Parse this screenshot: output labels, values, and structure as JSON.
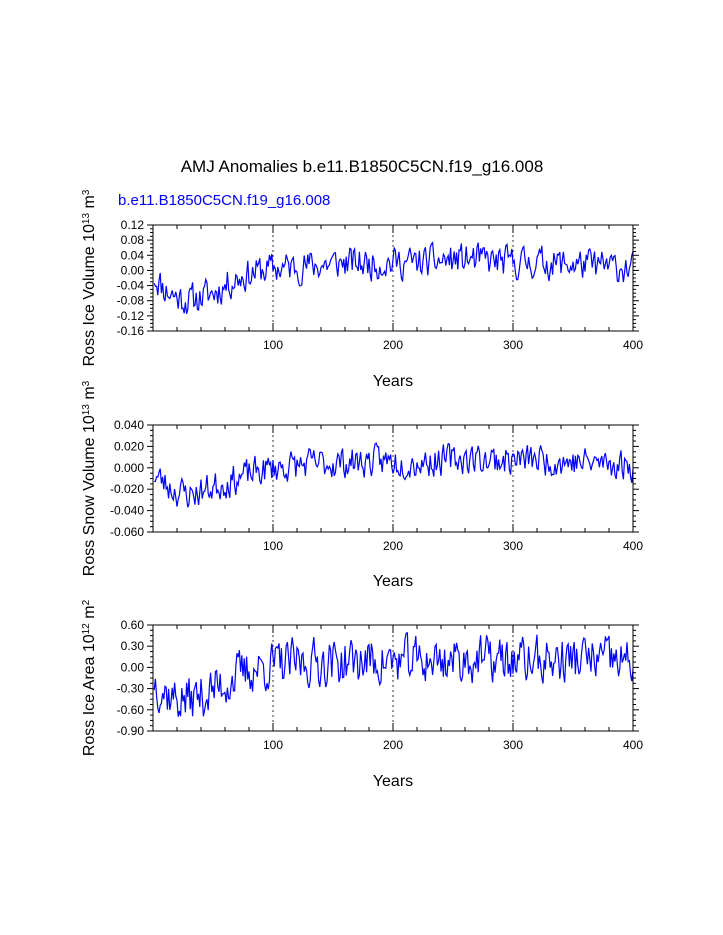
{
  "header": {
    "title": "AMJ Anomalies b.e11.B1850C5CN.f19_g16.008",
    "case_label": "b.e11.B1850C5CN.f19_g16.008"
  },
  "colors": {
    "series": "#0000ff",
    "axis": "#000000"
  },
  "chart_data": [
    {
      "type": "line",
      "title": "",
      "xlabel": "Years",
      "ylabel_main": "Ross Ice Volume 10",
      "ylabel_exp1": "13",
      "ylabel_unit": " m",
      "ylabel_exp2": "3",
      "xlim": [
        0,
        400
      ],
      "ylim": [
        -0.16,
        0.12
      ],
      "xticks": [
        100,
        200,
        300,
        400
      ],
      "xtick_labels": [
        "100",
        "200",
        "300",
        "400"
      ],
      "yticks": [
        -0.16,
        -0.12,
        -0.08,
        -0.04,
        0.0,
        0.04,
        0.08,
        0.12
      ],
      "ytick_labels": [
        "-0.16",
        "-0.12",
        "-0.08",
        "-0.04",
        "0.00",
        "0.04",
        "0.08",
        "0.12"
      ],
      "vlines": [
        100,
        200,
        300
      ],
      "series": [
        {
          "name": "Ross Ice Volume",
          "seed": 11,
          "x": [
            0,
            10,
            20,
            30,
            40,
            50,
            60,
            70,
            80,
            90,
            100,
            120,
            140,
            160,
            180,
            200,
            220,
            240,
            260,
            280,
            300,
            320,
            340,
            360,
            380,
            400
          ],
          "trend": [
            -0.01,
            -0.05,
            -0.07,
            -0.08,
            -0.07,
            -0.06,
            -0.04,
            -0.02,
            -0.01,
            0.0,
            0.005,
            0.01,
            0.015,
            0.02,
            0.018,
            0.022,
            0.02,
            0.025,
            0.03,
            0.025,
            0.02,
            0.022,
            0.018,
            0.015,
            0.01,
            0.005
          ],
          "amp": 0.038
        }
      ]
    },
    {
      "type": "line",
      "title": "",
      "xlabel": "Years",
      "ylabel_main": "Ross Snow Volume 10",
      "ylabel_exp1": "13",
      "ylabel_unit": " m",
      "ylabel_exp2": "3",
      "xlim": [
        0,
        400
      ],
      "ylim": [
        -0.06,
        0.04
      ],
      "xticks": [
        100,
        200,
        300,
        400
      ],
      "xtick_labels": [
        "100",
        "200",
        "300",
        "400"
      ],
      "yticks": [
        -0.06,
        -0.04,
        -0.02,
        0.0,
        0.02,
        0.04
      ],
      "ytick_labels": [
        "-0.060",
        "-0.040",
        "-0.020",
        "0.000",
        "0.020",
        "0.040"
      ],
      "vlines": [
        100,
        200,
        300
      ],
      "series": [
        {
          "name": "Ross Snow Volume",
          "seed": 23,
          "x": [
            0,
            10,
            20,
            30,
            40,
            50,
            60,
            70,
            80,
            90,
            100,
            120,
            140,
            160,
            180,
            200,
            220,
            240,
            260,
            280,
            300,
            320,
            340,
            360,
            380,
            400
          ],
          "trend": [
            -0.005,
            -0.015,
            -0.022,
            -0.025,
            -0.022,
            -0.018,
            -0.014,
            -0.01,
            -0.006,
            -0.003,
            0.0,
            0.002,
            0.004,
            0.005,
            0.006,
            0.006,
            0.005,
            0.007,
            0.009,
            0.008,
            0.007,
            0.008,
            0.006,
            0.005,
            0.004,
            0.002
          ],
          "amp": 0.013
        }
      ]
    },
    {
      "type": "line",
      "title": "",
      "xlabel": "Years",
      "ylabel_main": "Ross Ice Area 10",
      "ylabel_exp1": "12",
      "ylabel_unit": " m",
      "ylabel_exp2": "2",
      "xlim": [
        0,
        400
      ],
      "ylim": [
        -0.9,
        0.6
      ],
      "xticks": [
        100,
        200,
        300,
        400
      ],
      "xtick_labels": [
        "100",
        "200",
        "300",
        "400"
      ],
      "yticks": [
        -0.9,
        -0.6,
        -0.3,
        0.0,
        0.3,
        0.6
      ],
      "ytick_labels": [
        "-0.90",
        "-0.60",
        "-0.30",
        "0.00",
        "0.30",
        "0.60"
      ],
      "vlines": [
        100,
        200,
        300
      ],
      "series": [
        {
          "name": "Ross Ice Area",
          "seed": 37,
          "x": [
            0,
            10,
            20,
            30,
            40,
            50,
            60,
            70,
            80,
            90,
            100,
            120,
            140,
            160,
            180,
            200,
            220,
            240,
            260,
            280,
            300,
            320,
            340,
            360,
            380,
            400
          ],
          "trend": [
            -0.15,
            -0.35,
            -0.45,
            -0.45,
            -0.4,
            -0.32,
            -0.22,
            -0.12,
            -0.05,
            0.0,
            0.03,
            0.06,
            0.08,
            0.08,
            0.09,
            0.08,
            0.1,
            0.1,
            0.12,
            0.1,
            0.09,
            0.1,
            0.1,
            0.12,
            0.1,
            0.05
          ],
          "amp": 0.3
        }
      ]
    }
  ]
}
